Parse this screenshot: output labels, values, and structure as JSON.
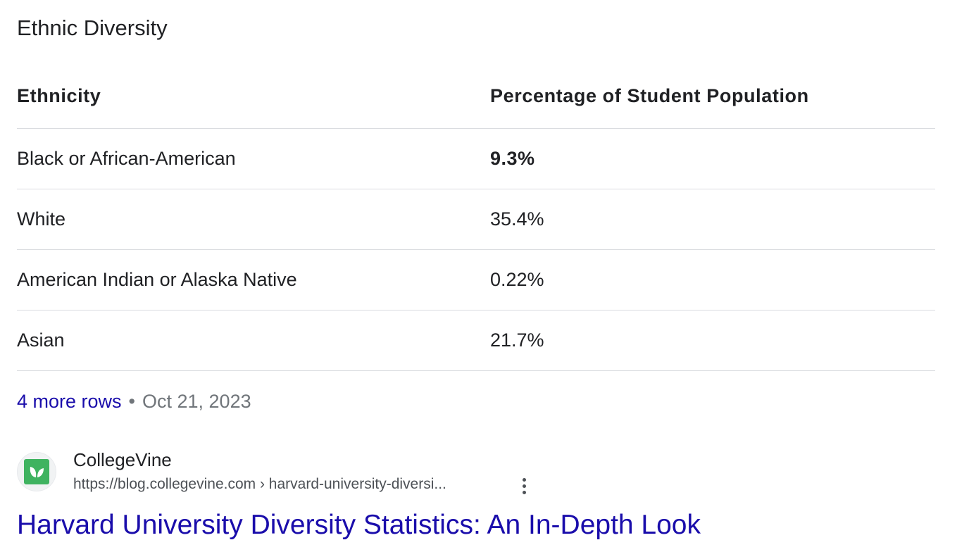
{
  "section_title": "Ethnic Diversity",
  "table": {
    "headers": {
      "ethnicity": "Ethnicity",
      "percentage": "Percentage of Student Population"
    },
    "rows": [
      {
        "ethnicity": "Black or African-American",
        "percentage": "9.3%"
      },
      {
        "ethnicity": "White",
        "percentage": "35.4%"
      },
      {
        "ethnicity": "American Indian or Alaska Native",
        "percentage": "0.22%"
      },
      {
        "ethnicity": "Asian",
        "percentage": "21.7%"
      }
    ]
  },
  "more": {
    "link_label": "4 more rows",
    "separator": "•",
    "date": "Oct 21, 2023"
  },
  "source": {
    "site_name": "CollegeVine",
    "url": "https://blog.collegevine.com › harvard-university-diversi...",
    "favicon_icon": "collegevine-leaf-icon",
    "favicon_color": "#3fb360",
    "menu_icon": "more-vert-icon"
  },
  "result_title": "Harvard University Diversity Statistics: An In-Depth Look",
  "colors": {
    "link": "#1a0dab",
    "text": "#202124",
    "muted": "#70757a",
    "divider": "#dadce0"
  }
}
